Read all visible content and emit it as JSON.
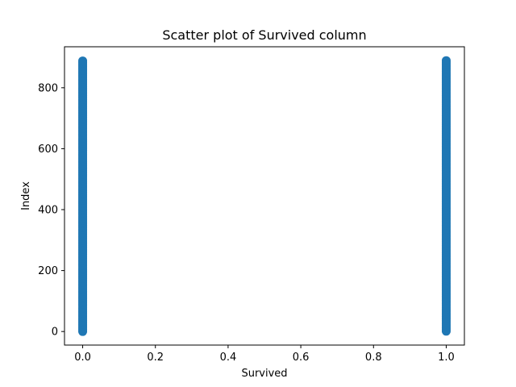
{
  "chart_data": {
    "type": "scatter",
    "title": "Scatter plot of Survived column",
    "xlabel": "Survived",
    "ylabel": "Index",
    "xlim": [
      -0.05,
      1.05
    ],
    "ylim": [
      -44.5,
      934.5
    ],
    "xticks": [
      0.0,
      0.2,
      0.4,
      0.6,
      0.8,
      1.0
    ],
    "xtick_labels": [
      "0.0",
      "0.2",
      "0.4",
      "0.6",
      "0.8",
      "1.0"
    ],
    "yticks": [
      0,
      200,
      400,
      600,
      800
    ],
    "ytick_labels": [
      "0",
      "200",
      "400",
      "600",
      "800"
    ],
    "grid": false,
    "series": [
      {
        "color": "#1f77b4",
        "points": [
          {
            "x": 0,
            "y_range": [
              0,
              890
            ]
          },
          {
            "x": 1,
            "y_range": [
              1,
              889
            ]
          }
        ]
      }
    ]
  }
}
